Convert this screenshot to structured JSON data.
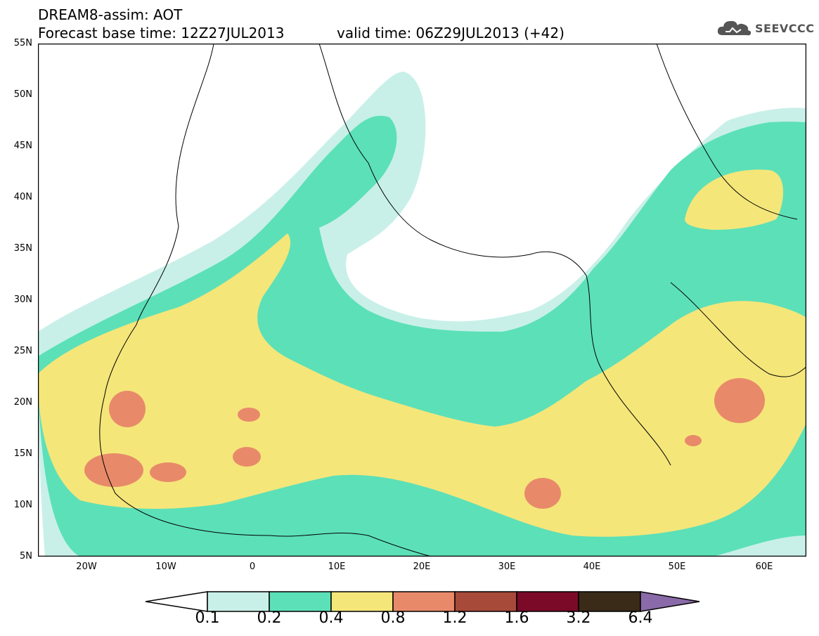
{
  "header": {
    "line1": "DREAM8-assim: AOT",
    "line2": "Forecast base time: 12Z27JUL2013",
    "valid_time": "valid time: 06Z29JUL2013 (+42)",
    "logo_text": "SEEVCCC",
    "logo_icon": "cloud-icon"
  },
  "map": {
    "lat_labels": [
      "55N",
      "50N",
      "45N",
      "40N",
      "35N",
      "30N",
      "25N",
      "20N",
      "15N",
      "10N",
      "5N"
    ],
    "lon_labels": [
      "20W",
      "10W",
      "0",
      "10E",
      "20E",
      "30E",
      "40E",
      "50E",
      "60E"
    ],
    "extent": {
      "lon_min": -25,
      "lon_max": 65,
      "lat_min": 5,
      "lat_max": 55
    }
  },
  "legend": {
    "levels": [
      "0.1",
      "0.2",
      "0.4",
      "0.8",
      "1.2",
      "1.6",
      "3.2",
      "6.4"
    ],
    "colors": [
      "#ffffff",
      "#c8f0e8",
      "#5ce0b8",
      "#f5e67a",
      "#e88a6a",
      "#a84a3a",
      "#7a0a28",
      "#3a2a18",
      "#8a6aa8"
    ]
  }
}
